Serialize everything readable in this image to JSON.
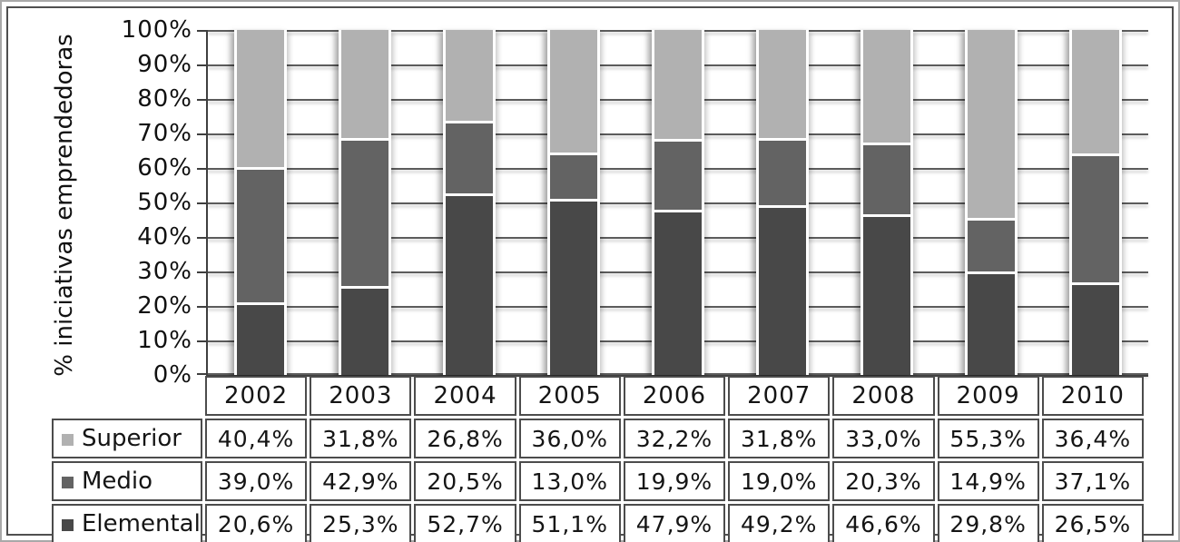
{
  "chart_data": {
    "type": "bar",
    "variant": "stacked-100-percent",
    "title": "",
    "xlabel": "",
    "ylabel": "% iniciativas emprendedoras",
    "ylim": [
      0,
      100
    ],
    "grid": "horizontal lines every 10%",
    "legend_position": "table-row-headers-left",
    "y_ticks": [
      "100%",
      "90%",
      "80%",
      "70%",
      "60%",
      "50%",
      "40%",
      "30%",
      "20%",
      "10%",
      "0%"
    ],
    "categories": [
      "2002",
      "2003",
      "2004",
      "2005",
      "2006",
      "2007",
      "2008",
      "2009",
      "2010"
    ],
    "series": [
      {
        "name": "Superior",
        "color": "#b1b1b1",
        "values": [
          40.4,
          31.8,
          26.8,
          36.0,
          32.2,
          31.8,
          33.0,
          55.3,
          36.4
        ],
        "display": [
          "40,4%",
          "31,8%",
          "26,8%",
          "36,0%",
          "32,2%",
          "31,8%",
          "33,0%",
          "55,3%",
          "36,4%"
        ]
      },
      {
        "name": "Medio",
        "color": "#636363",
        "values": [
          39.0,
          42.9,
          20.5,
          13.0,
          19.9,
          19.0,
          20.3,
          14.9,
          37.1
        ],
        "display": [
          "39,0%",
          "42,9%",
          "20,5%",
          "13,0%",
          "19,9%",
          "19,0%",
          "20,3%",
          "14,9%",
          "37,1%"
        ]
      },
      {
        "name": "Elemental",
        "color": "#484848",
        "values": [
          20.6,
          25.3,
          52.7,
          51.1,
          47.9,
          49.2,
          46.6,
          29.8,
          26.5
        ],
        "display": [
          "20,6%",
          "25,3%",
          "52,7%",
          "51,1%",
          "47,9%",
          "49,2%",
          "46,6%",
          "29,8%",
          "26,5%"
        ]
      }
    ]
  },
  "style": {
    "gridline_color": "#5c5c5c",
    "border_color": "#4c4c4c",
    "plot_background": "#ffffff"
  }
}
